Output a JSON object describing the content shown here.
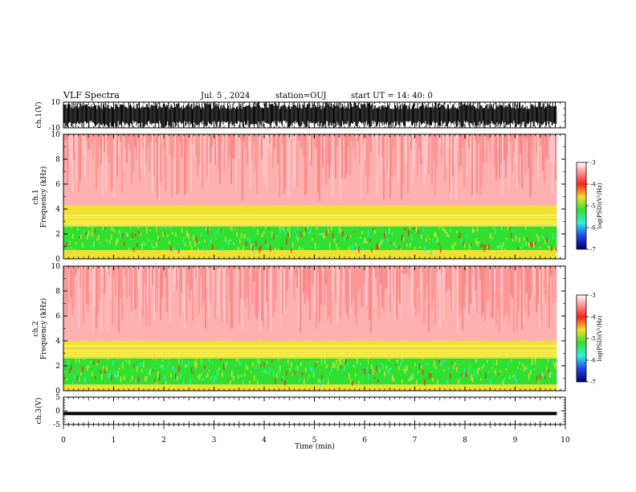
{
  "header": {
    "title": "VLF Spectra",
    "date": "Jul. 5 , 2024",
    "station": "station=OUJ",
    "start_ut": "start UT = 14: 40: 0"
  },
  "chart_data": {
    "type": "heatmap",
    "panels": [
      {
        "id": "ch1-waveform",
        "type": "line",
        "ylabel": "ch.1(V)",
        "ylim": [
          -10,
          10
        ],
        "yticks": [
          "10",
          "-10"
        ],
        "description_values": {
          "amplitude_range": [
            -10,
            10
          ]
        }
      },
      {
        "id": "ch1-spectrogram",
        "type": "heatmap",
        "ylabel": "ch.1\nFrequency (kHz)",
        "ylabel_lines": [
          "ch.1",
          "Frequency (kHz)"
        ],
        "ylim": [
          0,
          10
        ],
        "yticks": [
          "0",
          "2",
          "4",
          "6",
          "8",
          "10"
        ],
        "bands": [
          {
            "f_low": 0.0,
            "f_high": 0.7,
            "log_psd": -4.0
          },
          {
            "f_low": 0.7,
            "f_high": 2.6,
            "log_psd": -5.3
          },
          {
            "f_low": 2.6,
            "f_high": 4.3,
            "log_psd": -4.3
          },
          {
            "f_low": 4.3,
            "f_high": 10.0,
            "log_psd": -3.5
          }
        ],
        "lines_khz": [
          2.8,
          3.0,
          3.3,
          3.5
        ]
      },
      {
        "id": "ch2-spectrogram",
        "type": "heatmap",
        "ylabel": "ch.2\nFrequency (kHz)",
        "ylabel_lines": [
          "ch.2",
          "Frequency (kHz)"
        ],
        "ylim": [
          0,
          10
        ],
        "yticks": [
          "0",
          "2",
          "4",
          "6",
          "8",
          "10"
        ],
        "bands": [
          {
            "f_low": 0.0,
            "f_high": 0.5,
            "log_psd": -4.0
          },
          {
            "f_low": 0.5,
            "f_high": 2.6,
            "log_psd": -5.3
          },
          {
            "f_low": 2.6,
            "f_high": 4.0,
            "log_psd": -4.3
          },
          {
            "f_low": 4.0,
            "f_high": 10.0,
            "log_psd": -3.5
          }
        ],
        "lines_khz": [
          2.8,
          3.0,
          3.2,
          3.6
        ]
      },
      {
        "id": "ch3-waveform",
        "type": "line",
        "ylabel": "ch.3(V)",
        "ylim": [
          -5,
          5
        ],
        "yticks": [
          "5",
          "0",
          "-5"
        ],
        "values_constant": -1.0
      }
    ],
    "x": {
      "xlabel": "Time (min)",
      "xlim": [
        0,
        10
      ],
      "xticks": [
        "0",
        "1",
        "2",
        "3",
        "4",
        "5",
        "6",
        "7",
        "8",
        "9",
        "10"
      ],
      "data_end": 9.83
    },
    "colorbar": {
      "label": "log(PSD)(V²/Hz)",
      "ticks": [
        "-3",
        "-4",
        "-5",
        "-6",
        "-7"
      ],
      "range": [
        -7,
        -3
      ]
    },
    "colors": {
      "red": "#ff2020",
      "yellow": "#f0e030",
      "green": "#30e030",
      "cyan": "#30f0e0",
      "blue": "#2040f0",
      "navy": "#000070"
    }
  }
}
